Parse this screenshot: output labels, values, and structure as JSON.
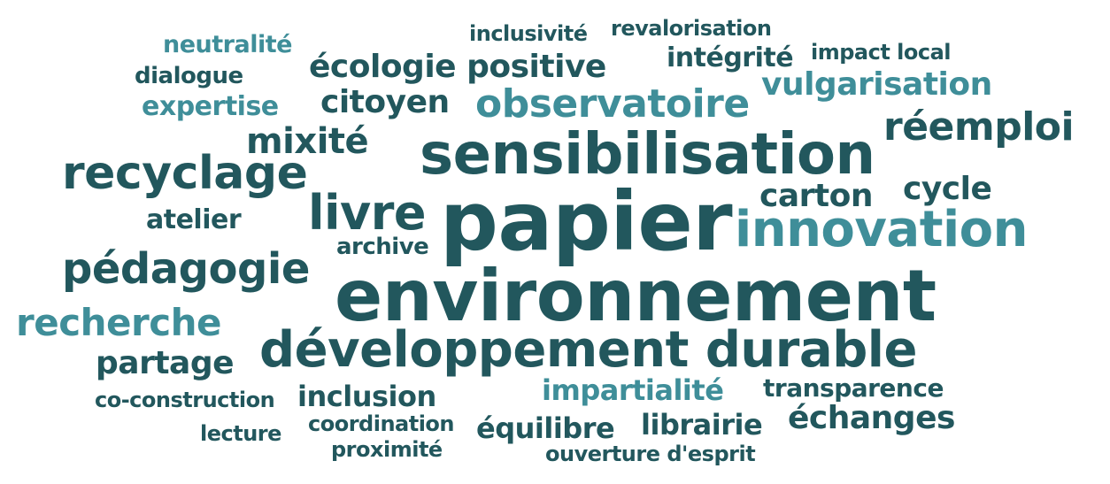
{
  "colors": {
    "dark": "#22575d",
    "light": "#3f8e99"
  },
  "words": [
    {
      "id": "papier",
      "text": "papier",
      "tone": "dark"
    },
    {
      "id": "environnement",
      "text": "environnement",
      "tone": "dark"
    },
    {
      "id": "sensibilisation",
      "text": "sensibilisation",
      "tone": "dark"
    },
    {
      "id": "developpement-durable",
      "text": "développement durable",
      "tone": "dark"
    },
    {
      "id": "innovation",
      "text": "innovation",
      "tone": "light"
    },
    {
      "id": "recyclage",
      "text": "recyclage",
      "tone": "dark"
    },
    {
      "id": "pedagogie",
      "text": "pédagogie",
      "tone": "dark"
    },
    {
      "id": "livre",
      "text": "livre",
      "tone": "dark"
    },
    {
      "id": "observatoire",
      "text": "observatoire",
      "tone": "light"
    },
    {
      "id": "reemploi",
      "text": "réemploi",
      "tone": "dark"
    },
    {
      "id": "recherche",
      "text": "recherche",
      "tone": "light"
    },
    {
      "id": "ecologie-positive",
      "text": "écologie positive",
      "tone": "dark"
    },
    {
      "id": "mixite",
      "text": "mixité",
      "tone": "dark"
    },
    {
      "id": "vulgarisation",
      "text": "vulgarisation",
      "tone": "light"
    },
    {
      "id": "citoyen",
      "text": "citoyen",
      "tone": "dark"
    },
    {
      "id": "carton",
      "text": "carton",
      "tone": "dark"
    },
    {
      "id": "cycle",
      "text": "cycle",
      "tone": "dark"
    },
    {
      "id": "partage",
      "text": "partage",
      "tone": "dark"
    },
    {
      "id": "echanges",
      "text": "échanges",
      "tone": "dark"
    },
    {
      "id": "impartialite",
      "text": "impartialité",
      "tone": "light"
    },
    {
      "id": "inclusion",
      "text": "inclusion",
      "tone": "dark"
    },
    {
      "id": "integrite",
      "text": "intégrité",
      "tone": "dark"
    },
    {
      "id": "expertise",
      "text": "expertise",
      "tone": "light"
    },
    {
      "id": "neutralite",
      "text": "neutralité",
      "tone": "light"
    },
    {
      "id": "atelier",
      "text": "atelier",
      "tone": "dark"
    },
    {
      "id": "equilibre",
      "text": "équilibre",
      "tone": "dark"
    },
    {
      "id": "librairie",
      "text": "librairie",
      "tone": "dark"
    },
    {
      "id": "transparence",
      "text": "transparence",
      "tone": "dark"
    },
    {
      "id": "dialogue",
      "text": "dialogue",
      "tone": "dark"
    },
    {
      "id": "archive",
      "text": "archive",
      "tone": "dark"
    },
    {
      "id": "inclusivite",
      "text": "inclusivité",
      "tone": "dark"
    },
    {
      "id": "revalorisation",
      "text": "revalorisation",
      "tone": "dark"
    },
    {
      "id": "impact-local",
      "text": "impact local",
      "tone": "dark"
    },
    {
      "id": "co-construction",
      "text": "co-construction",
      "tone": "dark"
    },
    {
      "id": "coordination",
      "text": "coordination",
      "tone": "dark"
    },
    {
      "id": "lecture",
      "text": "lecture",
      "tone": "dark"
    },
    {
      "id": "proximite",
      "text": "proximité",
      "tone": "dark"
    },
    {
      "id": "ouverture-d-esprit",
      "text": "ouverture d'esprit",
      "tone": "dark"
    }
  ]
}
